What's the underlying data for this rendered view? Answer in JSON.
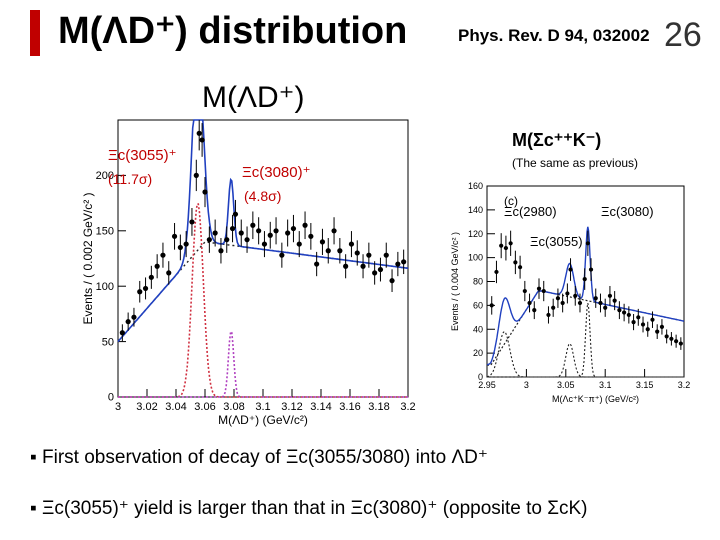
{
  "slide": {
    "title": "M(ΛD⁺) distribution",
    "reference": "Phys. Rev. D 94, 032002",
    "page_number": "26",
    "left_panel_title": "M(ΛD⁺)",
    "right_panel_title": "M(Σc⁺⁺K⁻)",
    "right_panel_subtitle": "(The same as previous)",
    "bullets": [
      "First observation of decay of Ξc(3055/3080)  into ΛD⁺",
      "Ξc(3055)⁺ yield is larger than that in Ξc(3080)⁺ (opposite to ΣcK)"
    ]
  },
  "chart_data": [
    {
      "type": "scatter",
      "ylabel": "Events / ( 0.002 GeV/c² )",
      "xlabel": "M(ΛD⁺) (GeV/c²)",
      "xlim": [
        3.0,
        3.2
      ],
      "ylim": [
        0,
        250
      ],
      "x_ticks": [
        "3",
        "3.02",
        "3.04",
        "3.06",
        "3.08",
        "3.1",
        "3.12",
        "3.14",
        "3.16",
        "3.18",
        "3.2"
      ],
      "y_ticks": [
        "0",
        "50",
        "100",
        "150",
        "200"
      ],
      "annotations": [
        {
          "label": "Ξc(3055)⁺",
          "significance": "(11.7σ)"
        },
        {
          "label": "Ξc(3080)⁺",
          "significance": "(4.8σ)"
        }
      ],
      "colors": {
        "data": "#000000",
        "fit": "#2040c0",
        "background": "#222222",
        "signal_3055": "#d03040",
        "signal_3080": "#b040c0"
      },
      "x": [
        3.003,
        3.007,
        3.011,
        3.015,
        3.019,
        3.023,
        3.027,
        3.031,
        3.035,
        3.039,
        3.043,
        3.047,
        3.051,
        3.054,
        3.056,
        3.058,
        3.06,
        3.063,
        3.067,
        3.071,
        3.075,
        3.079,
        3.081,
        3.085,
        3.089,
        3.093,
        3.097,
        3.101,
        3.105,
        3.109,
        3.113,
        3.117,
        3.121,
        3.125,
        3.129,
        3.133,
        3.137,
        3.141,
        3.145,
        3.149,
        3.153,
        3.157,
        3.161,
        3.165,
        3.169,
        3.173,
        3.177,
        3.181,
        3.185,
        3.189,
        3.193,
        3.197
      ],
      "y": [
        58,
        68,
        72,
        95,
        98,
        108,
        118,
        128,
        112,
        145,
        135,
        138,
        158,
        200,
        238,
        232,
        185,
        142,
        148,
        132,
        142,
        152,
        165,
        148,
        142,
        155,
        150,
        138,
        146,
        150,
        128,
        148,
        152,
        138,
        155,
        145,
        120,
        140,
        132,
        150,
        132,
        118,
        138,
        130,
        118,
        128,
        112,
        115,
        128,
        105,
        120,
        122
      ],
      "fit_components": [
        "total fit",
        "background",
        "Ξc(3055)⁺ signal",
        "Ξc(3080)⁺ signal"
      ]
    },
    {
      "type": "scatter",
      "panel_label": "(c)",
      "ylabel": "Events / ( 0.004 GeV/c² )",
      "xlabel": "M(Λc⁺K⁻π⁺) (GeV/c²)",
      "xlim": [
        2.95,
        3.2
      ],
      "ylim": [
        0,
        160
      ],
      "x_ticks": [
        "2.95",
        "3",
        "3.05",
        "3.1",
        "3.15",
        "3.2"
      ],
      "y_ticks": [
        "0",
        "20",
        "40",
        "60",
        "80",
        "100",
        "120",
        "140",
        "160"
      ],
      "annotations": [
        {
          "label": "Ξc(2980)"
        },
        {
          "label": "Ξc(3080)"
        },
        {
          "label": "Ξc(3055)"
        }
      ],
      "colors": {
        "data": "#000000",
        "fit": "#2040c0",
        "background": "#222222",
        "signals": "#222222"
      },
      "x": [
        2.956,
        2.962,
        2.968,
        2.974,
        2.98,
        2.986,
        2.992,
        2.998,
        3.004,
        3.01,
        3.016,
        3.022,
        3.028,
        3.034,
        3.04,
        3.046,
        3.052,
        3.056,
        3.062,
        3.068,
        3.074,
        3.078,
        3.082,
        3.088,
        3.094,
        3.1,
        3.106,
        3.112,
        3.118,
        3.124,
        3.13,
        3.136,
        3.142,
        3.148,
        3.154,
        3.16,
        3.166,
        3.172,
        3.178,
        3.184,
        3.19,
        3.196
      ],
      "y": [
        60,
        88,
        110,
        108,
        112,
        96,
        92,
        72,
        62,
        56,
        74,
        72,
        52,
        58,
        66,
        62,
        70,
        90,
        68,
        62,
        82,
        112,
        90,
        66,
        62,
        58,
        68,
        64,
        56,
        54,
        52,
        46,
        50,
        44,
        40,
        48,
        38,
        42,
        34,
        32,
        30,
        28
      ]
    }
  ]
}
